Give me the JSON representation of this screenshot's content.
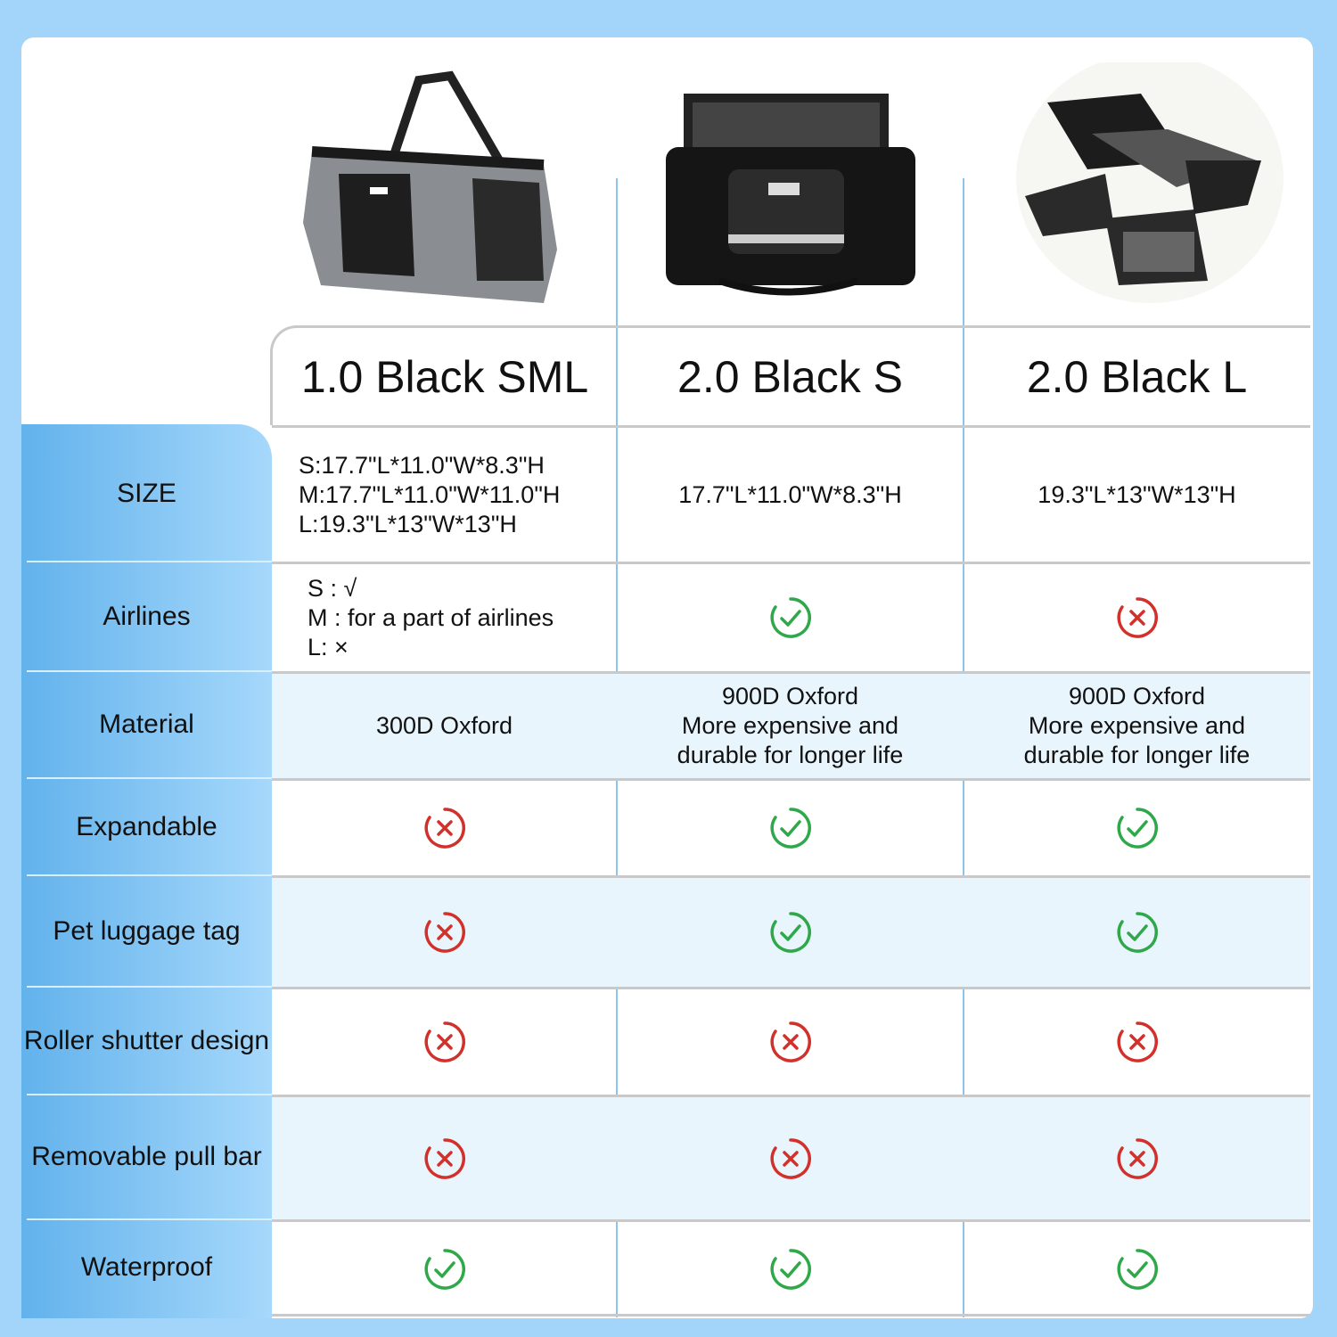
{
  "columns": [
    "1.0 Black SML",
    "2.0 Black S",
    "2.0 Black L"
  ],
  "product_images": [
    "gray-pet-carrier-image",
    "black-pet-carrier-image",
    "expandable-pet-carrier-image"
  ],
  "colors": {
    "check": "#2fa84a",
    "cross": "#d2312b",
    "label_bg": "#62b2ec",
    "alt_row": "#e9f5fd",
    "background": "#a3d4fa"
  },
  "rows": [
    {
      "label": "SIZE",
      "cells": [
        [
          "S:17.7\"L*11.0\"W*8.3\"H",
          "M:17.7\"L*11.0\"W*11.0\"H",
          "L:19.3\"L*13\"W*13\"H"
        ],
        "17.7\"L*11.0\"W*8.3\"H",
        "19.3\"L*13\"W*13\"H"
      ]
    },
    {
      "label": "Airlines",
      "cells": [
        [
          "S : √",
          "M : for a part of airlines",
          "L: ×"
        ],
        "check",
        "cross"
      ]
    },
    {
      "label": "Material",
      "cells": [
        "300D Oxford",
        [
          "900D Oxford",
          "More expensive and",
          "durable for longer life"
        ],
        [
          "900D Oxford",
          "More expensive and",
          "durable for longer life"
        ]
      ]
    },
    {
      "label": "Expandable",
      "cells": [
        "cross",
        "check",
        "check"
      ]
    },
    {
      "label": "Pet luggage tag",
      "cells": [
        "cross",
        "check",
        "check"
      ]
    },
    {
      "label": "Roller shutter design",
      "cells": [
        "cross",
        "cross",
        "cross"
      ]
    },
    {
      "label": "Removable pull bar",
      "cells": [
        "cross",
        "cross",
        "cross"
      ]
    },
    {
      "label": "Waterproof",
      "cells": [
        "check",
        "check",
        "check"
      ]
    }
  ]
}
